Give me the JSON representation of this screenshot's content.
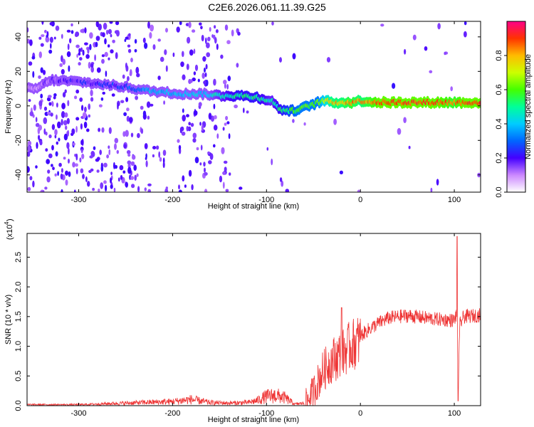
{
  "title": "C2E6.2026.061.11.39.G25",
  "chart_data": [
    {
      "type": "heatmap",
      "name": "spectrogram",
      "xlabel": "Height of straight line (km)",
      "ylabel": "Frequency (Hz)",
      "xlim": [
        -355,
        128
      ],
      "ylim": [
        -50,
        49
      ],
      "xticks": [
        -300,
        -200,
        -100,
        0,
        100
      ],
      "xtick_labels": [
        "-300",
        "-200",
        "-100",
        "0",
        "100"
      ],
      "yticks": [
        -40,
        -20,
        0,
        20,
        40
      ],
      "ytick_labels": [
        "-40",
        "-20",
        "0",
        "20",
        "40"
      ],
      "trace": {
        "x": [
          -345,
          -330,
          -300,
          -250,
          -230,
          -210,
          -190,
          -170,
          -150,
          -130,
          -110,
          -95,
          -85,
          -75,
          -65,
          -55,
          -45,
          -38,
          -30,
          -20,
          -10,
          0,
          20,
          50,
          80,
          100,
          110,
          128
        ],
        "y": [
          10,
          15,
          14,
          11,
          9,
          8,
          7,
          7,
          6,
          6,
          5,
          3,
          -2,
          -3,
          -2,
          0,
          2,
          3,
          2,
          2,
          2,
          3,
          2,
          2,
          2,
          2,
          2,
          2
        ],
        "amplitude": [
          0.1,
          0.15,
          0.2,
          0.25,
          0.35,
          0.4,
          0.4,
          0.4,
          0.45,
          0.5,
          0.5,
          0.45,
          0.5,
          0.55,
          0.6,
          0.6,
          0.6,
          0.7,
          0.8,
          0.8,
          0.85,
          0.8,
          0.9,
          0.9,
          0.9,
          0.85,
          0.9,
          0.9
        ]
      },
      "colorbar": {
        "label": "Normalized spectral amplitude",
        "range": [
          0,
          1
        ],
        "ticks": [
          0.0,
          0.2,
          0.4,
          0.6,
          0.8
        ],
        "tick_labels": [
          "0.0",
          "0.2",
          "0.4",
          "0.6",
          "0.8"
        ]
      }
    },
    {
      "type": "line",
      "name": "snr",
      "xlabel": "Height of straight line (km)",
      "ylabel": "SNR (10 * v/v)",
      "scale_label": "(x10",
      "scale_exp": "4",
      "xlim": [
        -355,
        128
      ],
      "ylim": [
        0,
        2.9
      ],
      "xticks": [
        -300,
        -200,
        -100,
        0,
        100
      ],
      "xtick_labels": [
        "-300",
        "-200",
        "-100",
        "0",
        "100"
      ],
      "yticks": [
        0.0,
        0.5,
        1.0,
        1.5,
        2.0,
        2.5
      ],
      "ytick_labels": [
        "0.0",
        "0.5",
        "1.0",
        "1.5",
        "2.0",
        "2.5"
      ],
      "color": "#ee3333",
      "envelope": {
        "x": [
          -355,
          -300,
          -250,
          -200,
          -180,
          -160,
          -140,
          -120,
          -110,
          -100,
          -90,
          -80,
          -70,
          -60,
          -50,
          -40,
          -30,
          -20,
          -10,
          0,
          10,
          20,
          30,
          40,
          50,
          60,
          70,
          80,
          90,
          100,
          103,
          104,
          106,
          110,
          128
        ],
        "y": [
          0.02,
          0.02,
          0.05,
          0.08,
          0.12,
          0.06,
          0.05,
          0.06,
          0.1,
          0.18,
          0.2,
          0.15,
          0.03,
          0.05,
          0.3,
          0.65,
          0.85,
          0.95,
          1.1,
          1.2,
          1.32,
          1.42,
          1.5,
          1.52,
          1.54,
          1.52,
          1.5,
          1.48,
          1.47,
          1.46,
          1.6,
          0.3,
          1.4,
          1.52,
          1.55
        ]
      },
      "spikes": [
        {
          "x": -20,
          "y": 1.65
        },
        {
          "x": 103,
          "y": 2.85
        },
        {
          "x": 104,
          "y": 0.08
        }
      ]
    }
  ]
}
